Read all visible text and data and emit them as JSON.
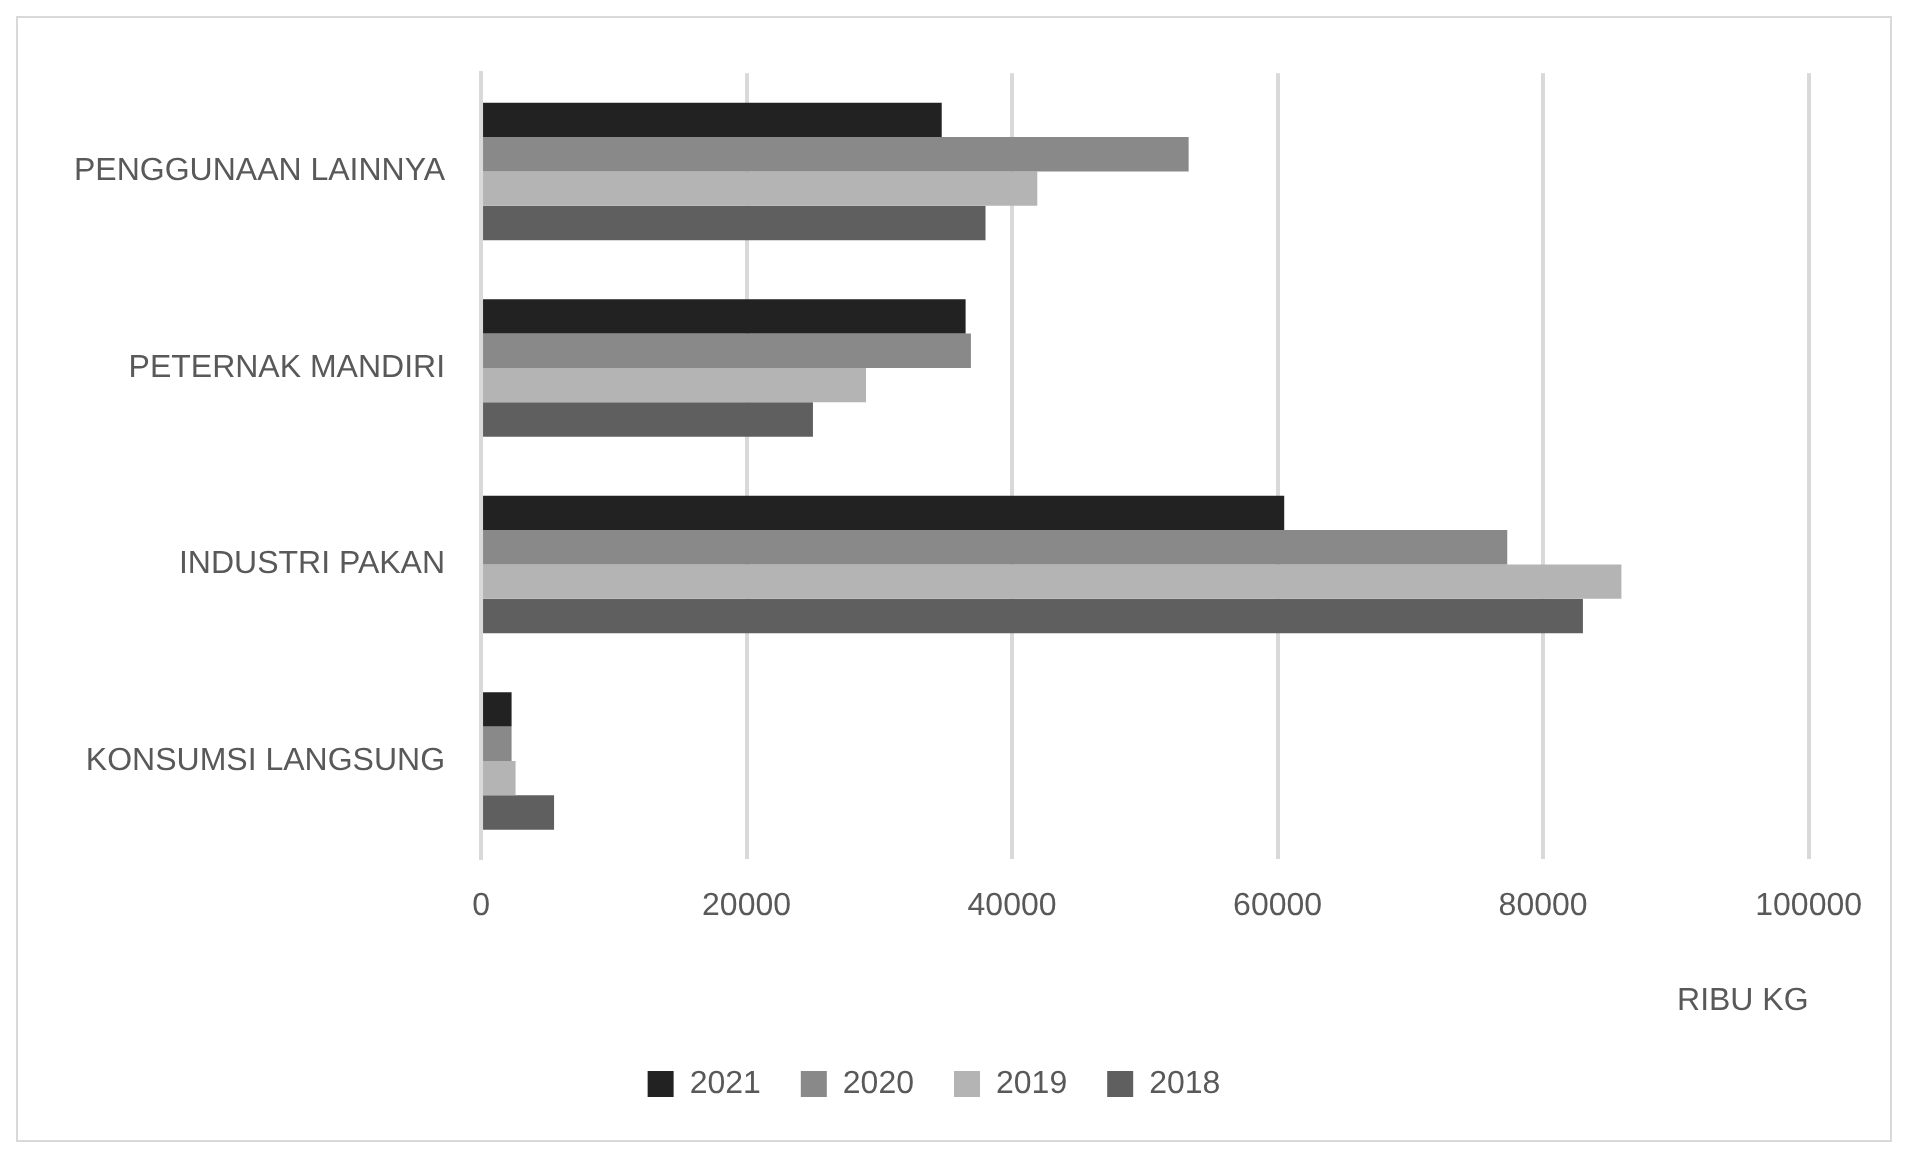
{
  "chart_data": {
    "type": "bar",
    "orientation": "horizontal",
    "xlabel": "RIBU KG",
    "categories": [
      "PENGGUNAAN LAINNYA",
      "PETERNAK MANDIRI",
      "INDUSTRI PAKAN",
      "KONSUMSI LANGSUNG"
    ],
    "series": [
      {
        "name": "2021",
        "color": "#222222",
        "values": [
          34700,
          36500,
          60500,
          2300
        ]
      },
      {
        "name": "2020",
        "color": "#898989",
        "values": [
          53300,
          36900,
          77300,
          2300
        ]
      },
      {
        "name": "2019",
        "color": "#b4b4b4",
        "values": [
          41900,
          29000,
          85900,
          2600
        ]
      },
      {
        "name": "2018",
        "color": "#5f5f5f",
        "values": [
          38000,
          25000,
          83000,
          5500
        ]
      }
    ],
    "xlim": [
      0,
      100000
    ],
    "xticks": [
      0,
      20000,
      40000,
      60000,
      80000,
      100000
    ],
    "grid": "x",
    "legend": "bottom"
  }
}
